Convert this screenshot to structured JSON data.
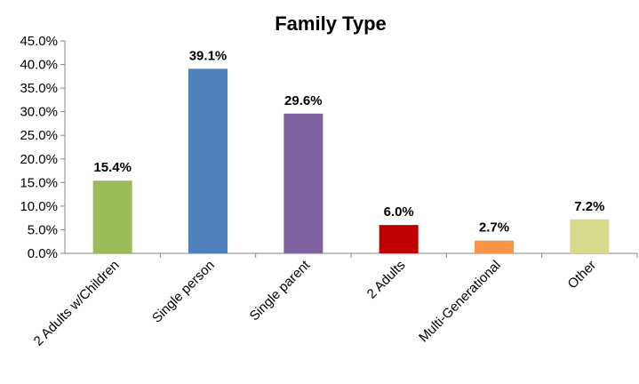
{
  "chart_data": {
    "type": "bar",
    "title": "Family Type",
    "xlabel": "",
    "ylabel": "",
    "categories": [
      "2 Adults w/Children",
      "Single person",
      "Single parent",
      "2 Adults",
      "Multi-Generational",
      "Other"
    ],
    "values": [
      15.4,
      39.1,
      29.6,
      6.0,
      2.7,
      7.2
    ],
    "value_labels": [
      "15.4%",
      "39.1%",
      "29.6%",
      "6.0%",
      "2.7%",
      "7.2%"
    ],
    "colors": [
      "#9bbb59",
      "#4f81bd",
      "#8064a2",
      "#c00000",
      "#f79646",
      "#d7d98c"
    ],
    "ylim": [
      0,
      45
    ],
    "yticks": [
      0,
      5,
      10,
      15,
      20,
      25,
      30,
      35,
      40,
      45
    ],
    "ytick_labels": [
      "0.0%",
      "5.0%",
      "10.0%",
      "15.0%",
      "20.0%",
      "25.0%",
      "30.0%",
      "35.0%",
      "40.0%",
      "45.0%"
    ],
    "grid": false,
    "legend": "none"
  }
}
